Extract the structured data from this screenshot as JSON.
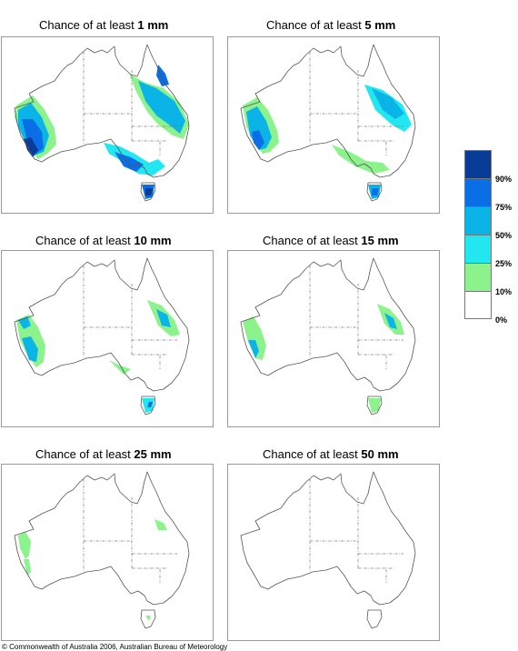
{
  "panels": [
    {
      "title_prefix": "Chance of at least ",
      "amount": "1 mm"
    },
    {
      "title_prefix": "Chance of at least ",
      "amount": "5 mm"
    },
    {
      "title_prefix": "Chance of at least ",
      "amount": "10 mm"
    },
    {
      "title_prefix": "Chance of at least ",
      "amount": "15 mm"
    },
    {
      "title_prefix": "Chance of at least ",
      "amount": "25 mm"
    },
    {
      "title_prefix": "Chance of at least ",
      "amount": "50 mm"
    }
  ],
  "legend": {
    "labels": [
      "90%",
      "75%",
      "50%",
      "25%",
      "10%",
      "0%"
    ],
    "colors": [
      "#083c96",
      "#0a6ee6",
      "#0ab4e6",
      "#22e6f0",
      "#8cf28c",
      "#ffffff"
    ]
  },
  "credit": "© Commonwealth of Australia 2006, Australian Bureau of Meteorology"
}
